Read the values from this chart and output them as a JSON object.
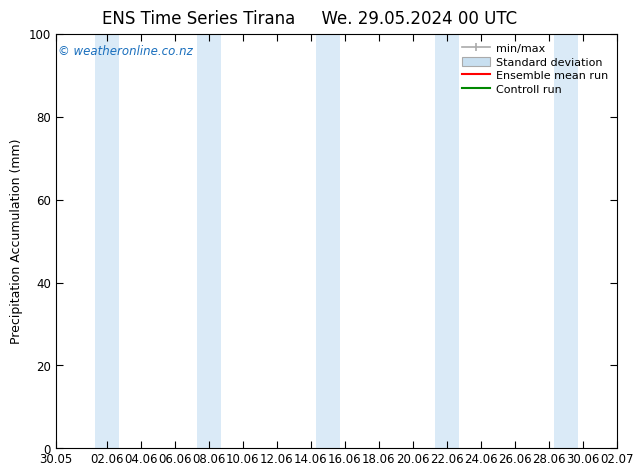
{
  "title1": "ENS Time Series Tirana",
  "title2": "We. 29.05.2024 00 UTC",
  "ylabel": "Precipitation Accumulation (mm)",
  "ylim": [
    0,
    100
  ],
  "yticks": [
    0,
    20,
    40,
    60,
    80,
    100
  ],
  "xtick_labels": [
    "30.05",
    "02.06",
    "04.06",
    "06.06",
    "08.06",
    "10.06",
    "12.06",
    "14.06",
    "16.06",
    "18.06",
    "20.06",
    "22.06",
    "24.06",
    "26.06",
    "28.06",
    "30.06",
    "02.07"
  ],
  "xtick_positions": [
    0,
    3,
    5,
    7,
    9,
    11,
    13,
    15,
    17,
    19,
    21,
    23,
    25,
    27,
    29,
    31,
    33
  ],
  "shade_bands": [
    [
      2.3,
      3.7
    ],
    [
      8.3,
      9.7
    ],
    [
      15.3,
      16.7
    ],
    [
      22.3,
      23.7
    ],
    [
      29.3,
      30.7
    ]
  ],
  "shade_color": "#daeaf7",
  "watermark": "© weatheronline.co.nz",
  "watermark_color": "#1a6fbd",
  "background_color": "#ffffff",
  "plot_bg_color": "#ffffff",
  "legend_minmax_color": "#aaaaaa",
  "legend_std_color": "#c8dff0",
  "legend_mean_color": "#ff0000",
  "legend_control_color": "#008800",
  "title_fontsize": 12,
  "tick_fontsize": 8.5,
  "ylabel_fontsize": 9,
  "legend_fontsize": 8
}
